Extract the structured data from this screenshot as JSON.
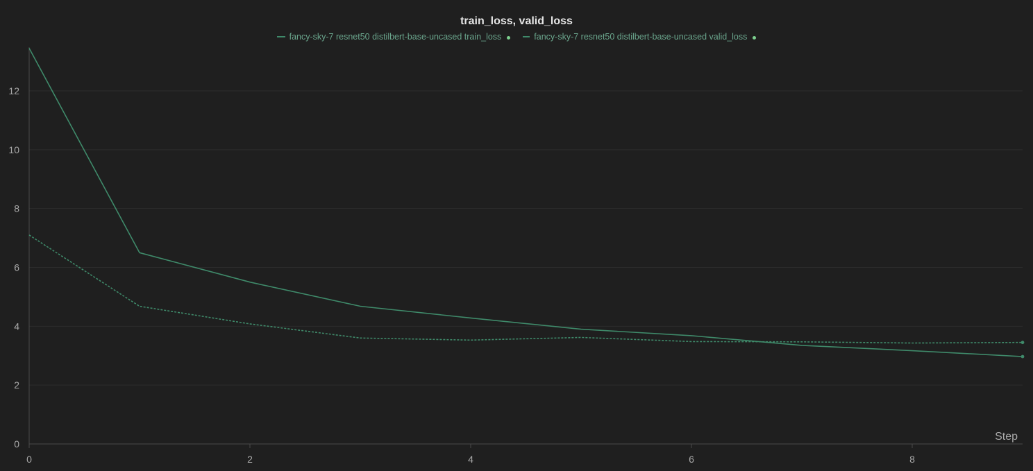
{
  "chart_data": {
    "type": "line",
    "title": "train_loss, valid_loss",
    "xlabel": "Step",
    "ylabel": "",
    "xlim": [
      0,
      9
    ],
    "ylim": [
      0,
      13.5
    ],
    "x_ticks": [
      0,
      2,
      4,
      6,
      8
    ],
    "y_ticks": [
      0,
      2,
      4,
      6,
      8,
      10,
      12
    ],
    "grid": true,
    "legend_position": "top-center",
    "x": [
      0,
      1,
      2,
      3,
      4,
      5,
      6,
      7,
      8,
      9
    ],
    "series": [
      {
        "name": "fancy-sky-7 resnet50 distilbert-base-uncased train_loss",
        "style": "solid",
        "color": "#3f8a6a",
        "values": [
          13.45,
          6.5,
          5.5,
          4.68,
          4.28,
          3.9,
          3.68,
          3.35,
          3.17,
          2.97
        ]
      },
      {
        "name": "fancy-sky-7 resnet50 distilbert-base-uncased valid_loss",
        "style": "dashed",
        "color": "#3f8a6a",
        "values": [
          7.1,
          4.68,
          4.08,
          3.6,
          3.53,
          3.62,
          3.48,
          3.47,
          3.43,
          3.45
        ]
      }
    ]
  }
}
